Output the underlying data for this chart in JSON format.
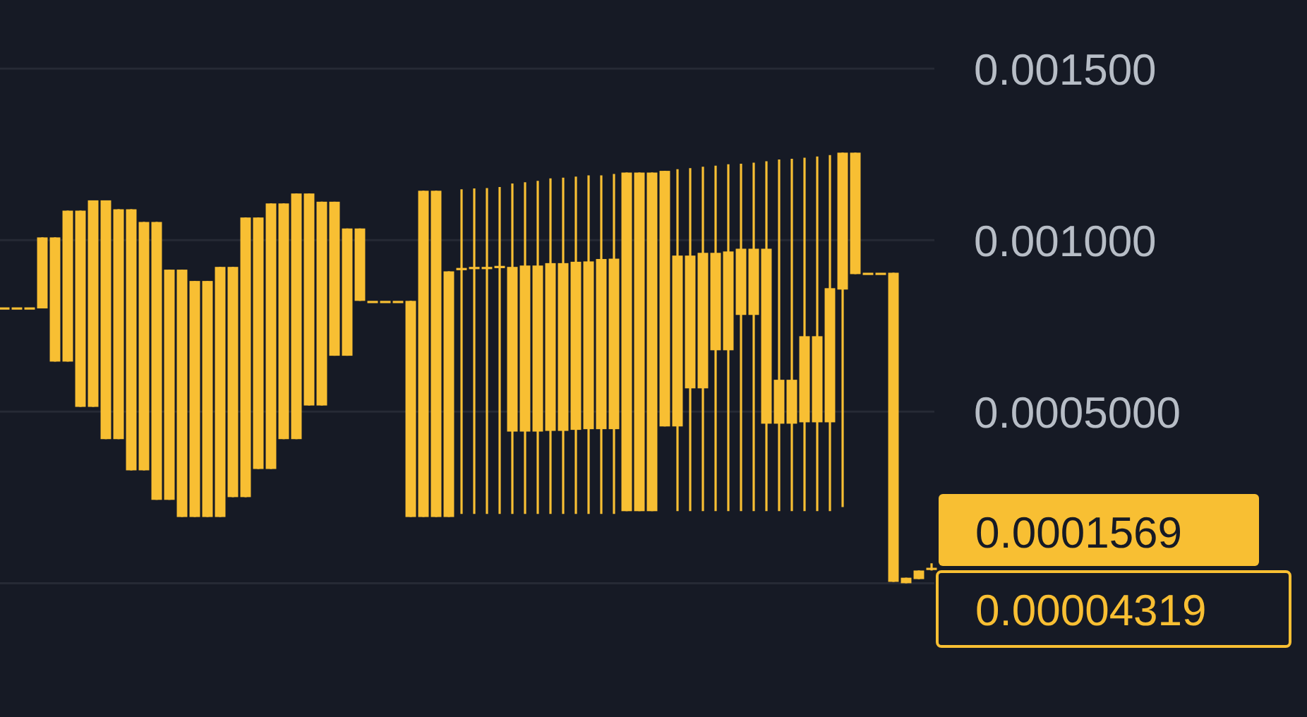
{
  "chart_data": {
    "type": "candlestick",
    "categories": [
      null,
      null,
      null,
      null,
      null,
      null,
      null,
      null,
      null,
      null,
      null,
      null,
      null,
      null,
      null,
      null,
      null,
      null,
      null,
      null,
      null,
      null,
      null,
      null,
      null,
      null,
      null,
      null,
      null,
      null,
      null,
      null,
      null,
      null,
      null,
      null,
      null,
      null,
      null,
      null,
      null,
      null,
      null,
      null,
      null,
      null,
      null,
      null,
      null,
      null,
      null,
      null,
      null,
      null,
      null,
      null,
      null,
      null,
      null,
      null,
      null,
      null,
      null,
      null,
      null,
      null,
      null,
      null,
      null,
      null,
      null,
      null,
      null,
      null
    ],
    "series": [
      {
        "color": "#f8bf33",
        "ohlc": [
          [
            0.000804,
            0.000804,
            0.000804,
            0.000804
          ],
          [
            0.000804,
            0.000804,
            0.000804,
            0.000804
          ],
          [
            0.000804,
            0.000804,
            0.000804,
            0.000804
          ],
          [
            0.000801,
            0.001008,
            0.000801,
            0.001008
          ],
          [
            0.000646,
            0.001008,
            0.000646,
            0.001008
          ],
          [
            0.000646,
            0.001086,
            0.000646,
            0.001086
          ],
          [
            0.000514,
            0.001086,
            0.000514,
            0.001086
          ],
          [
            0.000514,
            0.001116,
            0.000514,
            0.001116
          ],
          [
            0.00042,
            0.001116,
            0.00042,
            0.001116
          ],
          [
            0.00042,
            0.00109,
            0.00042,
            0.00109
          ],
          [
            0.000329,
            0.00109,
            0.000329,
            0.00109
          ],
          [
            0.000329,
            0.001053,
            0.000329,
            0.001053
          ],
          [
            0.000243,
            0.001053,
            0.000243,
            0.001053
          ],
          [
            0.000243,
            0.000914,
            0.000243,
            0.000914
          ],
          [
            0.000193,
            0.000914,
            0.000193,
            0.000914
          ],
          [
            0.000193,
            0.000881,
            0.000193,
            0.000881
          ],
          [
            0.000193,
            0.000881,
            0.000193,
            0.000881
          ],
          [
            0.000193,
            0.000922,
            0.000193,
            0.000922
          ],
          [
            0.000251,
            0.000922,
            0.000251,
            0.000922
          ],
          [
            0.000251,
            0.001066,
            0.000251,
            0.001066
          ],
          [
            0.000333,
            0.001066,
            0.000333,
            0.001066
          ],
          [
            0.000333,
            0.001107,
            0.000333,
            0.001107
          ],
          [
            0.00042,
            0.001107,
            0.00042,
            0.001107
          ],
          [
            0.00042,
            0.001136,
            0.00042,
            0.001136
          ],
          [
            0.000518,
            0.001136,
            0.000518,
            0.001136
          ],
          [
            0.000518,
            0.001112,
            0.000518,
            0.001112
          ],
          [
            0.000663,
            0.001112,
            0.000663,
            0.001112
          ],
          [
            0.000663,
            0.001034,
            0.000663,
            0.001034
          ],
          [
            0.000823,
            0.001034,
            0.000823,
            0.001034
          ],
          [
            0.000823,
            0.000823,
            0.000823,
            0.000823
          ],
          [
            0.000823,
            0.000823,
            0.000823,
            0.000823
          ],
          [
            0.000823,
            0.000823,
            0.000823,
            0.000823
          ],
          [
            0.000193,
            0.000823,
            0.000193,
            0.000823
          ],
          [
            0.000193,
            0.001144,
            0.000193,
            0.001144
          ],
          [
            0.000193,
            0.001144,
            0.000193,
            0.001144
          ],
          [
            0.000193,
            0.000909,
            0.000193,
            0.000909
          ],
          [
            0.000919,
            0.001148,
            0.000202,
            0.000919
          ],
          [
            0.000922,
            0.001151,
            0.000202,
            0.000922
          ],
          [
            0.000922,
            0.001152,
            0.000202,
            0.000922
          ],
          [
            0.000925,
            0.001155,
            0.000202,
            0.000925
          ],
          [
            0.000442,
            0.001165,
            0.000202,
            0.000922
          ],
          [
            0.000442,
            0.001169,
            0.000202,
            0.000926
          ],
          [
            0.000442,
            0.001173,
            0.000202,
            0.000926
          ],
          [
            0.000444,
            0.00118,
            0.000202,
            0.000933
          ],
          [
            0.000444,
            0.001182,
            0.000202,
            0.000933
          ],
          [
            0.000447,
            0.001185,
            0.000202,
            0.000937
          ],
          [
            0.000449,
            0.001189,
            0.000202,
            0.000938
          ],
          [
            0.000449,
            0.001189,
            0.000202,
            0.000945
          ],
          [
            0.000449,
            0.001193,
            0.000202,
            0.000946
          ],
          [
            0.00021,
            0.001197,
            0.00021,
            0.001197
          ],
          [
            0.00021,
            0.001197,
            0.00021,
            0.001197
          ],
          [
            0.00021,
            0.001197,
            0.00021,
            0.001197
          ],
          [
            0.000457,
            0.001202,
            0.000457,
            0.001202
          ],
          [
            0.000457,
            0.001207,
            0.00021,
            0.000955
          ],
          [
            0.000568,
            0.00121,
            0.00021,
            0.000955
          ],
          [
            0.000568,
            0.001214,
            0.00021,
            0.000963
          ],
          [
            0.000679,
            0.001217,
            0.00021,
            0.000963
          ],
          [
            0.000679,
            0.001221,
            0.00021,
            0.000967
          ],
          [
            0.000782,
            0.001223,
            0.00021,
            0.000975
          ],
          [
            0.000782,
            0.001226,
            0.00021,
            0.000975
          ],
          [
            0.000465,
            0.00123,
            0.00021,
            0.000975
          ],
          [
            0.000465,
            0.001235,
            0.00021,
            0.000593
          ],
          [
            0.000465,
            0.001237,
            0.00021,
            0.000593
          ],
          [
            0.000469,
            0.00124,
            0.00021,
            0.00072
          ],
          [
            0.000469,
            0.001244,
            0.00021,
            0.00072
          ],
          [
            0.000469,
            0.001248,
            0.00021,
            0.00086
          ],
          [
            0.000856,
            0.001255,
            0.000222,
            0.001255
          ],
          [
            0.000901,
            0.001255,
            0.000901,
            0.001255
          ],
          [
            0.000905,
            0.000905,
            0.000905,
            0.000905
          ],
          [
            0.000905,
            0.000905,
            0.000905,
            0.000905
          ],
          [
            4e-06,
            0.000905,
            4e-06,
            0.000905
          ],
          [
            0,
            1.6e-05,
            0,
            1.6e-05
          ],
          [
            1.2e-05,
            3.7e-05,
            1.2e-05,
            3.7e-05
          ],
          [
            4.5e-05,
            5.8e-05,
            3.7e-05,
            4.5e-05
          ]
        ]
      }
    ],
    "ylim": [
      -0.00039,
      0.0017
    ],
    "yticks": [
      {
        "value": 0,
        "label": null
      },
      {
        "value": 0.0005,
        "label": "0.0005000"
      },
      {
        "value": 0.001,
        "label": "0.001000"
      },
      {
        "value": 0.0015,
        "label": "0.001500"
      }
    ],
    "grid": "y",
    "annotations": [
      "0.0001569",
      "0.00004319"
    ]
  }
}
